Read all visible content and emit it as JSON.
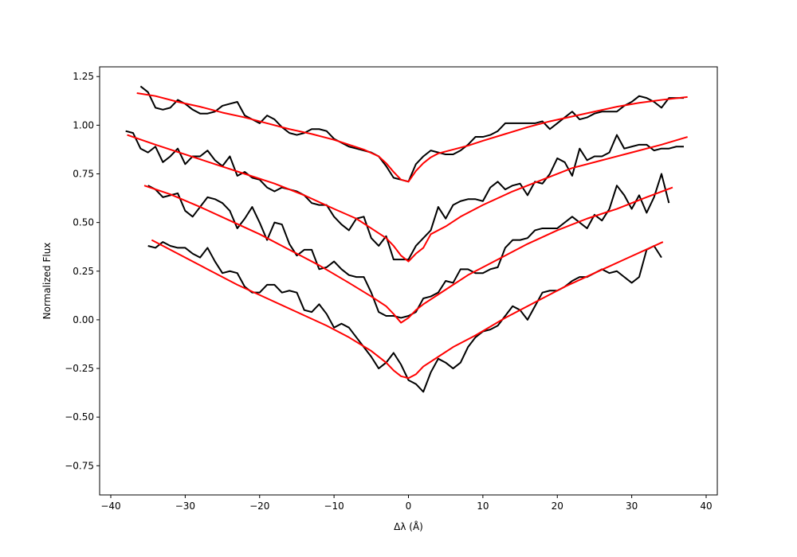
{
  "chart_data": {
    "type": "line",
    "xlabel": "Δλ (Å)",
    "ylabel": "Normalized Flux",
    "xlim": [
      -41.5,
      41.5
    ],
    "ylim": [
      -0.9,
      1.3
    ],
    "xticks": [
      -40,
      -30,
      -20,
      -10,
      0,
      10,
      20,
      30,
      40
    ],
    "xtick_labels": [
      "−40",
      "−30",
      "−20",
      "−10",
      "0",
      "10",
      "20",
      "30",
      "40"
    ],
    "yticks": [
      1.25,
      1.0,
      0.75,
      0.5,
      0.25,
      0.0,
      -0.25,
      -0.5,
      -0.75
    ],
    "ytick_labels": [
      "1.25",
      "1.00",
      "0.75",
      "0.50",
      "0.25",
      "0.00",
      "−0.25",
      "−0.50",
      "−0.75"
    ],
    "grid": false,
    "colors": {
      "observed": "#000000",
      "model": "#ff0000"
    },
    "series": [
      {
        "kind": "observed",
        "x": [
          -36,
          -35,
          -34,
          -33,
          -32,
          -31,
          -30,
          -29,
          -28,
          -27,
          -26,
          -25,
          -24,
          -23,
          -22,
          -21,
          -20,
          -19,
          -18,
          -17,
          -16,
          -15,
          -14,
          -13,
          -12,
          -11,
          -10,
          -9,
          -8,
          -7,
          -6,
          -5,
          -4,
          -3,
          -2,
          -1,
          0,
          1,
          2,
          3,
          4,
          5,
          6,
          7,
          8,
          9,
          10,
          11,
          12,
          13,
          14,
          15,
          16,
          17,
          18,
          19,
          20,
          21,
          22,
          23,
          24,
          25,
          26,
          27,
          28,
          29,
          30,
          31,
          32,
          33,
          34,
          35,
          36,
          37
        ],
        "y": [
          1.2,
          1.17,
          1.09,
          1.08,
          1.09,
          1.13,
          1.11,
          1.08,
          1.06,
          1.06,
          1.07,
          1.1,
          1.11,
          1.12,
          1.05,
          1.03,
          1.01,
          1.05,
          1.03,
          0.99,
          0.96,
          0.95,
          0.96,
          0.98,
          0.98,
          0.97,
          0.93,
          0.91,
          0.89,
          0.88,
          0.87,
          0.86,
          0.84,
          0.79,
          0.73,
          0.72,
          0.71,
          0.8,
          0.84,
          0.87,
          0.86,
          0.85,
          0.85,
          0.87,
          0.9,
          0.94,
          0.94,
          0.95,
          0.97,
          1.01,
          1.01,
          1.01,
          1.01,
          1.01,
          1.02,
          0.98,
          1.01,
          1.04,
          1.07,
          1.03,
          1.04,
          1.06,
          1.07,
          1.07,
          1.07,
          1.1,
          1.12,
          1.15,
          1.14,
          1.12,
          1.09,
          1.14,
          1.14,
          1.14
        ]
      },
      {
        "kind": "observed",
        "x": [
          -38,
          -37,
          -36,
          -35,
          -34,
          -33,
          -32,
          -31,
          -30,
          -29,
          -28,
          -27,
          -26,
          -25,
          -24,
          -23,
          -22,
          -21,
          -20,
          -19,
          -18,
          -17,
          -16,
          -15,
          -14,
          -13,
          -12,
          -11,
          -10,
          -9,
          -8,
          -7,
          -6,
          -5,
          -4,
          -3,
          -2,
          -1,
          0,
          1,
          2,
          3,
          4,
          5,
          6,
          7,
          8,
          9,
          10,
          11,
          12,
          13,
          14,
          15,
          16,
          17,
          18,
          19,
          20,
          21,
          22,
          23,
          24,
          25,
          26,
          27,
          28,
          29,
          30,
          31,
          32,
          33,
          34,
          35,
          36,
          37
        ],
        "y": [
          0.97,
          0.96,
          0.88,
          0.86,
          0.89,
          0.81,
          0.84,
          0.88,
          0.8,
          0.84,
          0.84,
          0.87,
          0.82,
          0.79,
          0.84,
          0.74,
          0.76,
          0.73,
          0.72,
          0.68,
          0.66,
          0.68,
          0.67,
          0.66,
          0.64,
          0.6,
          0.59,
          0.59,
          0.53,
          0.49,
          0.46,
          0.52,
          0.53,
          0.42,
          0.38,
          0.43,
          0.31,
          0.31,
          0.31,
          0.38,
          0.42,
          0.46,
          0.58,
          0.52,
          0.59,
          0.61,
          0.62,
          0.62,
          0.61,
          0.68,
          0.71,
          0.67,
          0.69,
          0.7,
          0.64,
          0.71,
          0.7,
          0.75,
          0.83,
          0.81,
          0.74,
          0.88,
          0.82,
          0.84,
          0.84,
          0.86,
          0.95,
          0.88,
          0.89,
          0.9,
          0.9,
          0.87,
          0.88,
          0.88,
          0.89,
          0.89
        ]
      },
      {
        "kind": "observed",
        "x": [
          -35,
          -34,
          -33,
          -32,
          -31,
          -30,
          -29,
          -28,
          -27,
          -26,
          -25,
          -24,
          -23,
          -22,
          -21,
          -20,
          -19,
          -18,
          -17,
          -16,
          -15,
          -14,
          -13,
          -12,
          -11,
          -10,
          -9,
          -8,
          -7,
          -6,
          -5,
          -4,
          -3,
          -2,
          -1,
          0,
          1,
          2,
          3,
          4,
          5,
          6,
          7,
          8,
          9,
          10,
          11,
          12,
          13,
          14,
          15,
          16,
          17,
          18,
          19,
          20,
          21,
          22,
          23,
          24,
          25,
          26,
          27,
          28,
          29,
          30,
          31,
          32,
          33,
          34,
          35
        ],
        "y": [
          0.69,
          0.67,
          0.63,
          0.64,
          0.65,
          0.56,
          0.53,
          0.58,
          0.63,
          0.62,
          0.6,
          0.56,
          0.47,
          0.52,
          0.58,
          0.5,
          0.41,
          0.5,
          0.49,
          0.39,
          0.33,
          0.36,
          0.36,
          0.26,
          0.27,
          0.3,
          0.26,
          0.23,
          0.22,
          0.22,
          0.14,
          0.04,
          0.02,
          0.02,
          0.01,
          0.02,
          0.04,
          0.11,
          0.12,
          0.14,
          0.2,
          0.19,
          0.26,
          0.26,
          0.24,
          0.24,
          0.26,
          0.27,
          0.37,
          0.41,
          0.41,
          0.42,
          0.46,
          0.47,
          0.47,
          0.47,
          0.5,
          0.53,
          0.5,
          0.47,
          0.54,
          0.51,
          0.57,
          0.69,
          0.64,
          0.57,
          0.64,
          0.55,
          0.63,
          0.75,
          0.6
        ]
      },
      {
        "kind": "observed",
        "x": [
          -35,
          -34,
          -33,
          -32,
          -31,
          -30,
          -29,
          -28,
          -27,
          -26,
          -25,
          -24,
          -23,
          -22,
          -21,
          -20,
          -19,
          -18,
          -17,
          -16,
          -15,
          -14,
          -13,
          -12,
          -11,
          -10,
          -9,
          -8,
          -7,
          -6,
          -5,
          -4,
          -3,
          -2,
          -1,
          0,
          1,
          2,
          3,
          4,
          5,
          6,
          7,
          8,
          9,
          10,
          11,
          12,
          13,
          14,
          15,
          16,
          17,
          18,
          19,
          20,
          21,
          22,
          23,
          24,
          25,
          26,
          27,
          28,
          29,
          30,
          31,
          32,
          33,
          34
        ],
        "y": [
          0.38,
          0.37,
          0.4,
          0.38,
          0.37,
          0.37,
          0.34,
          0.32,
          0.37,
          0.3,
          0.24,
          0.25,
          0.24,
          0.17,
          0.14,
          0.14,
          0.18,
          0.18,
          0.14,
          0.15,
          0.14,
          0.05,
          0.04,
          0.08,
          0.03,
          -0.04,
          -0.02,
          -0.04,
          -0.09,
          -0.14,
          -0.19,
          -0.25,
          -0.22,
          -0.17,
          -0.23,
          -0.31,
          -0.33,
          -0.37,
          -0.27,
          -0.2,
          -0.22,
          -0.25,
          -0.22,
          -0.14,
          -0.09,
          -0.06,
          -0.05,
          -0.03,
          0.02,
          0.07,
          0.05,
          0.0,
          0.07,
          0.14,
          0.15,
          0.15,
          0.17,
          0.2,
          0.22,
          0.22,
          0.24,
          0.26,
          0.24,
          0.25,
          0.22,
          0.19,
          0.22,
          0.36,
          0.38,
          0.32
        ]
      },
      {
        "kind": "model",
        "x": [
          -36.5,
          -34,
          -31,
          -28,
          -25,
          -22,
          -19,
          -16,
          -13,
          -10,
          -8,
          -6,
          -4,
          -3,
          -2,
          -1,
          0,
          1,
          2,
          3,
          4,
          6,
          8,
          10,
          13,
          16,
          19,
          22,
          25,
          28,
          31,
          34,
          37.5
        ],
        "y": [
          1.165,
          1.15,
          1.12,
          1.095,
          1.065,
          1.04,
          1.01,
          0.98,
          0.955,
          0.925,
          0.9,
          0.875,
          0.84,
          0.805,
          0.76,
          0.72,
          0.71,
          0.765,
          0.805,
          0.835,
          0.855,
          0.875,
          0.895,
          0.92,
          0.955,
          0.99,
          1.02,
          1.045,
          1.07,
          1.095,
          1.115,
          1.13,
          1.145
        ]
      },
      {
        "kind": "model",
        "x": [
          -37.8,
          -34,
          -30,
          -26,
          -22,
          -18,
          -14,
          -10,
          -7,
          -5,
          -3,
          -2,
          -1,
          0,
          1,
          2,
          3,
          5,
          7,
          10,
          14,
          18,
          22,
          26,
          30,
          34,
          37.5
        ],
        "y": [
          0.95,
          0.9,
          0.85,
          0.8,
          0.75,
          0.7,
          0.64,
          0.57,
          0.52,
          0.47,
          0.42,
          0.38,
          0.33,
          0.3,
          0.34,
          0.37,
          0.44,
          0.48,
          0.53,
          0.59,
          0.66,
          0.72,
          0.78,
          0.82,
          0.86,
          0.9,
          0.94
        ]
      },
      {
        "kind": "model",
        "x": [
          -35.5,
          -32,
          -28,
          -24,
          -20,
          -16,
          -12,
          -8,
          -5,
          -3,
          -2,
          -1,
          0,
          1,
          2,
          4,
          6,
          8,
          12,
          16,
          20,
          24,
          28,
          32,
          35.5
        ],
        "y": [
          0.69,
          0.645,
          0.58,
          0.51,
          0.44,
          0.36,
          0.28,
          0.19,
          0.12,
          0.07,
          0.03,
          -0.015,
          0.01,
          0.05,
          0.08,
          0.13,
          0.18,
          0.23,
          0.31,
          0.39,
          0.46,
          0.52,
          0.57,
          0.63,
          0.68
        ]
      },
      {
        "kind": "model",
        "x": [
          -34.5,
          -31,
          -27,
          -23,
          -19,
          -15,
          -11,
          -8,
          -5,
          -3,
          -2,
          -1,
          0,
          1,
          2,
          4,
          6,
          9,
          13,
          17,
          21,
          25,
          29,
          34.2
        ],
        "y": [
          0.41,
          0.34,
          0.26,
          0.18,
          0.11,
          0.04,
          -0.03,
          -0.09,
          -0.16,
          -0.22,
          -0.26,
          -0.29,
          -0.3,
          -0.28,
          -0.24,
          -0.19,
          -0.14,
          -0.08,
          0.01,
          0.09,
          0.17,
          0.24,
          0.31,
          0.4
        ]
      }
    ]
  }
}
